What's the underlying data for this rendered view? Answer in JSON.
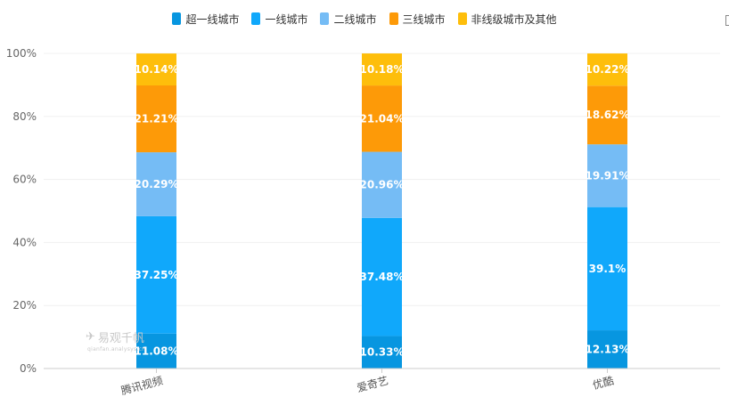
{
  "chart_data": {
    "type": "bar",
    "stacked": true,
    "categories": [
      "腾讯视频",
      "爱奇艺",
      "优酷"
    ],
    "series": [
      {
        "name": "超一线城市",
        "color": "#0796e0",
        "values": [
          11.08,
          10.33,
          12.13
        ]
      },
      {
        "name": "一线城市",
        "color": "#10a8fb",
        "values": [
          37.25,
          37.48,
          39.1
        ]
      },
      {
        "name": "二线城市",
        "color": "#75bcf5",
        "values": [
          20.29,
          20.96,
          19.91
        ]
      },
      {
        "name": "三线城市",
        "color": "#fd9a08",
        "values": [
          21.21,
          21.04,
          18.62
        ]
      },
      {
        "name": "非线级城市及其他",
        "color": "#febe0b",
        "values": [
          10.14,
          10.18,
          10.22
        ]
      }
    ],
    "data_labels": [
      [
        "11.08%",
        "10.33%",
        "12.13%"
      ],
      [
        "37.25%",
        "37.48%",
        "39.1%"
      ],
      [
        "20.29%",
        "20.96%",
        "19.91%"
      ],
      [
        "21.21%",
        "21.04%",
        "18.62%"
      ],
      [
        "10.14%",
        "10.18%",
        "10.22%"
      ]
    ],
    "yticks": [
      "0%",
      "20%",
      "40%",
      "60%",
      "80%",
      "100%"
    ],
    "ylim": [
      0,
      100
    ],
    "grid": true,
    "legend_position": "top-center"
  },
  "watermark": {
    "logo_text": "易观千帆",
    "sub_text": "qianfan.analysys.cn"
  }
}
